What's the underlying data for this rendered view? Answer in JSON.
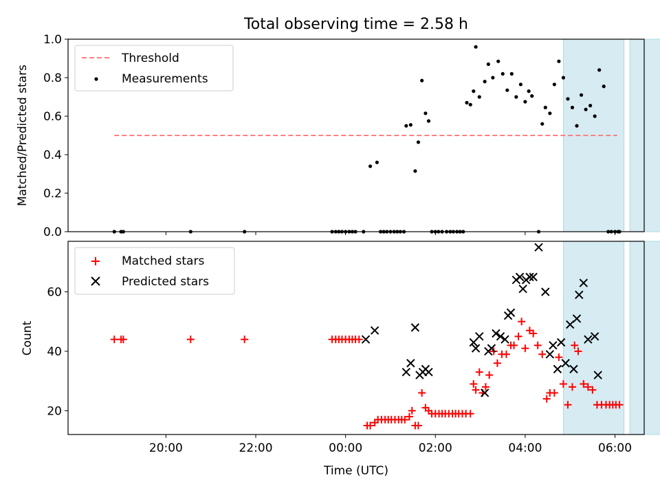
{
  "figure": {
    "title": "Total observing time = 2.58 h",
    "xlabel": "Time (UTC)",
    "x_ticks": [
      {
        "t": 20.0,
        "label": "20:00"
      },
      {
        "t": 22.0,
        "label": "22:00"
      },
      {
        "t": 24.0,
        "label": "00:00"
      },
      {
        "t": 26.0,
        "label": "02:00"
      },
      {
        "t": 28.0,
        "label": "04:00"
      },
      {
        "t": 30.0,
        "label": "06:00"
      }
    ],
    "x_unit": "hours since 00:00 UTC of the first night",
    "xlim": [
      17.82,
      30.65
    ],
    "observing_windows": [
      [
        28.85,
        30.2
      ],
      [
        30.33,
        31.58
      ]
    ],
    "window_color": "#add8e6"
  },
  "chart_data": [
    {
      "type": "scatter",
      "ylabel": "Matched/Predicted stars",
      "ylim": [
        0,
        1.0
      ],
      "yticks": [
        "0.0",
        "0.2",
        "0.4",
        "0.6",
        "0.8",
        "1.0"
      ],
      "legend_position": "top-left",
      "series": [
        {
          "name": "Threshold",
          "kind": "dashed-line",
          "color": "#ff7f7f",
          "x": [
            18.85,
            30.05
          ],
          "y": [
            0.5,
            0.5
          ]
        },
        {
          "name": "Measurements",
          "kind": "dot",
          "color": "#000000",
          "x": [
            18.85,
            19.0,
            19.05,
            20.55,
            21.75,
            23.7,
            23.78,
            23.85,
            23.92,
            24.0,
            24.08,
            24.15,
            24.22,
            24.4,
            24.55,
            24.7,
            24.78,
            24.85,
            24.92,
            25.0,
            25.08,
            25.15,
            25.22,
            25.3,
            25.35,
            25.45,
            25.55,
            25.62,
            25.7,
            25.78,
            25.85,
            25.92,
            26.0,
            26.07,
            26.15,
            26.25,
            26.33,
            26.4,
            26.48,
            26.55,
            26.62,
            26.7,
            26.78,
            26.85,
            26.9,
            26.98,
            27.1,
            27.18,
            27.28,
            27.4,
            27.5,
            27.6,
            27.7,
            27.8,
            27.9,
            28.0,
            28.08,
            28.15,
            28.3,
            28.38,
            28.45,
            28.55,
            28.65,
            28.75,
            28.85,
            28.95,
            29.05,
            29.15,
            29.25,
            29.35,
            29.45,
            29.55,
            29.65,
            29.75,
            29.85,
            29.92,
            30.0,
            30.07,
            30.1
          ],
          "y": [
            0.0,
            0.0,
            0.0,
            0.0,
            0.0,
            0.0,
            0.0,
            0.0,
            0.0,
            0.0,
            0.0,
            0.0,
            0.0,
            0.0,
            0.34,
            0.36,
            0.0,
            0.0,
            0.0,
            0.0,
            0.0,
            0.0,
            0.0,
            0.0,
            0.55,
            0.555,
            0.315,
            0.465,
            0.785,
            0.615,
            0.575,
            0.0,
            0.0,
            0.0,
            0.0,
            0.0,
            0.0,
            0.0,
            0.0,
            0.0,
            0.0,
            0.67,
            0.66,
            0.73,
            0.96,
            0.7,
            0.78,
            0.87,
            0.8,
            0.885,
            0.82,
            0.735,
            0.82,
            0.7,
            0.765,
            0.675,
            0.73,
            0.705,
            0.0,
            0.56,
            0.645,
            0.615,
            0.765,
            0.885,
            0.8,
            0.69,
            0.645,
            0.55,
            0.71,
            0.635,
            0.655,
            0.6,
            0.84,
            0.755,
            0.0,
            0.0,
            0.0,
            0.0,
            0.0
          ]
        }
      ]
    },
    {
      "type": "scatter",
      "ylabel": "Count",
      "ylim": [
        12,
        77
      ],
      "yticks": [
        "20",
        "40",
        "60"
      ],
      "legend_position": "top-left",
      "series": [
        {
          "name": "Matched stars",
          "marker": "+",
          "color": "#ff0000",
          "x": [
            18.85,
            19.0,
            19.05,
            20.55,
            21.75,
            23.7,
            23.78,
            23.85,
            23.92,
            24.0,
            24.08,
            24.15,
            24.22,
            24.3,
            24.48,
            24.55,
            24.65,
            24.72,
            24.8,
            24.88,
            24.95,
            25.02,
            25.1,
            25.18,
            25.25,
            25.32,
            25.42,
            25.48,
            25.55,
            25.62,
            25.7,
            25.78,
            25.85,
            25.92,
            26.0,
            26.08,
            26.15,
            26.22,
            26.3,
            26.38,
            26.45,
            26.52,
            26.6,
            26.68,
            26.78,
            26.85,
            26.9,
            26.98,
            27.05,
            27.12,
            27.2,
            27.3,
            27.38,
            27.48,
            27.58,
            27.68,
            27.75,
            27.85,
            27.92,
            28.0,
            28.1,
            28.18,
            28.28,
            28.38,
            28.48,
            28.55,
            28.65,
            28.75,
            28.85,
            28.95,
            29.05,
            29.1,
            29.18,
            29.3,
            29.4,
            29.5,
            29.6,
            29.7,
            29.8,
            29.88,
            29.95,
            30.02,
            30.1
          ],
          "y": [
            44,
            44,
            44,
            44,
            44,
            44,
            44,
            44,
            44,
            44,
            44,
            44,
            44,
            44,
            15,
            15,
            16,
            17,
            17,
            17,
            17,
            17,
            17,
            17,
            17,
            17,
            18,
            20,
            15,
            15,
            26,
            21,
            20,
            19,
            19,
            19,
            19,
            19,
            19,
            19,
            19,
            19,
            19,
            19,
            19,
            29,
            27,
            33,
            26,
            28,
            32,
            40,
            36,
            39,
            39,
            42,
            42,
            45,
            50,
            41,
            47,
            46,
            42,
            39,
            24,
            26,
            26,
            38,
            29,
            22,
            28,
            42,
            40,
            29,
            28,
            27,
            22,
            22,
            22,
            22,
            22,
            22,
            22
          ]
        },
        {
          "name": "Predicted stars",
          "marker": "x",
          "color": "#000000",
          "x": [
            24.45,
            24.65,
            25.35,
            25.45,
            25.55,
            25.65,
            25.72,
            25.78,
            25.85,
            26.85,
            26.9,
            26.98,
            27.1,
            27.18,
            27.25,
            27.35,
            27.45,
            27.55,
            27.62,
            27.68,
            27.8,
            27.88,
            27.95,
            28.02,
            28.1,
            28.18,
            28.3,
            28.45,
            28.55,
            28.62,
            28.72,
            28.8,
            28.9,
            29.0,
            29.08,
            29.15,
            29.2,
            29.3,
            29.4,
            29.55,
            29.62
          ],
          "y": [
            44,
            47,
            33,
            36,
            48,
            32,
            33,
            34,
            33,
            43,
            41,
            45,
            26,
            40,
            41,
            46,
            45,
            44,
            52,
            53,
            64,
            65,
            61,
            64,
            65,
            65,
            75,
            60,
            39,
            42,
            34,
            43,
            36,
            49,
            34,
            51,
            59,
            63,
            44,
            45,
            32
          ]
        }
      ]
    }
  ]
}
